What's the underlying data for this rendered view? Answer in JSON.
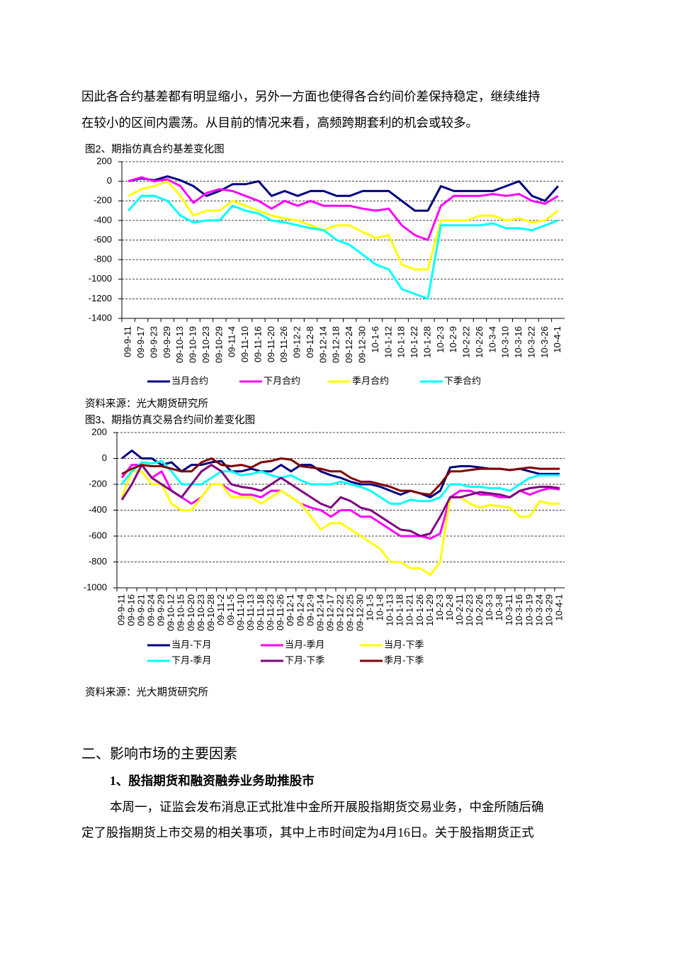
{
  "document": {
    "intro": [
      "因此各合约基差都有明显缩小，另外一方面也使得各合约间价差保持稳定，继续维持",
      "在较小的区间内震荡。从目前的情况来看，高频跨期套利的机会或较多。"
    ],
    "source_1": "资料来源：光大期货研究所",
    "source_2": "资料来源：光大期货研究所",
    "section_title": "二、影响市场的主要因素",
    "subsection_title": "1、股指期货和融资融券业务助推股市",
    "paragraph": [
      "本周一，证监会发布消息正式批准中金所开展股指期货交易业务，中金所随后确",
      "定了股指期货上市交易的相关事项，其中上市时间定为4月16日。关于股指期货正式"
    ]
  },
  "chart_data": [
    {
      "type": "line",
      "title": "图2、期指仿真合约基差变化图",
      "categories": [
        "09-9-11",
        "09-9-17",
        "09-9-23",
        "09-9-29",
        "09-10-13",
        "09-10-19",
        "09-10-23",
        "09-10-29",
        "09-11-4",
        "09-11-10",
        "09-11-16",
        "09-11-20",
        "09-11-26",
        "09-12-2",
        "09-12-8",
        "09-12-14",
        "09-12-18",
        "09-12-24",
        "09-12-30",
        "10-1-6",
        "10-1-12",
        "10-1-18",
        "10-1-22",
        "10-1-28",
        "10-2-3",
        "10-2-9",
        "10-2-22",
        "10-2-26",
        "10-3-4",
        "10-3-10",
        "10-3-16",
        "10-3-22",
        "10-3-26",
        "10-4-1"
      ],
      "series": [
        {
          "name": "当月合约",
          "color": "#000080",
          "values": [
            0,
            30,
            10,
            50,
            10,
            -50,
            -150,
            -100,
            -30,
            -30,
            0,
            -150,
            -100,
            -150,
            -100,
            -100,
            -150,
            -150,
            -100,
            -100,
            -100,
            -200,
            -300,
            -300,
            -50,
            -100,
            -100,
            -100,
            -100,
            -50,
            0,
            -150,
            -200,
            -50
          ]
        },
        {
          "name": "下月合约",
          "color": "#ff00ff",
          "values": [
            0,
            40,
            0,
            20,
            -50,
            -220,
            -120,
            -80,
            -100,
            -150,
            -200,
            -280,
            -200,
            -250,
            -200,
            -250,
            -250,
            -250,
            -280,
            -300,
            -280,
            -450,
            -550,
            -600,
            -250,
            -150,
            -150,
            -150,
            -130,
            -150,
            -130,
            -200,
            -230,
            -150
          ]
        },
        {
          "name": "季月合约",
          "color": "#ffff00",
          "values": [
            -150,
            -80,
            -50,
            0,
            -150,
            -350,
            -300,
            -300,
            -200,
            -250,
            -300,
            -350,
            -380,
            -400,
            -450,
            -500,
            -450,
            -450,
            -520,
            -580,
            -550,
            -850,
            -900,
            -900,
            -400,
            -400,
            -400,
            -350,
            -350,
            -400,
            -380,
            -420,
            -400,
            -300
          ]
        },
        {
          "name": "下季合约",
          "color": "#00ffff",
          "values": [
            -300,
            -150,
            -150,
            -200,
            -350,
            -420,
            -400,
            -400,
            -250,
            -300,
            -330,
            -400,
            -420,
            -450,
            -480,
            -500,
            -600,
            -650,
            -750,
            -850,
            -900,
            -1100,
            -1150,
            -1200,
            -450,
            -450,
            -450,
            -450,
            -430,
            -480,
            -480,
            -500,
            -450,
            -400
          ]
        }
      ],
      "ylim": [
        -1400,
        200
      ],
      "yticks": [
        200,
        0,
        -200,
        -400,
        -600,
        -800,
        -1000,
        -1200,
        -1400
      ],
      "grid": true
    },
    {
      "type": "line",
      "title": "图3、期指仿真交易合约间价差变化图",
      "categories": [
        "09-9-11",
        "09-9-16",
        "09-9-21",
        "09-9-24",
        "09-9-29",
        "09-10-12",
        "09-10-15",
        "09-10-20",
        "09-10-23",
        "09-10-28",
        "09-11-2",
        "09-11-5",
        "09-11-10",
        "09-11-13",
        "09-11-18",
        "09-11-23",
        "09-11-26",
        "09-12-1",
        "09-12-4",
        "09-12-9",
        "09-12-14",
        "09-12-17",
        "09-12-22",
        "09-12-25",
        "09-12-30",
        "10-1-5",
        "10-1-8",
        "10-1-13",
        "10-1-18",
        "10-1-21",
        "10-1-26",
        "10-1-29",
        "10-2-3",
        "10-2-8",
        "10-2-11",
        "10-2-23",
        "10-2-26",
        "10-3-3",
        "10-3-8",
        "10-3-11",
        "10-3-16",
        "10-3-19",
        "10-3-24",
        "10-3-29",
        "10-4-1"
      ],
      "series": [
        {
          "name": "当月-下月",
          "color": "#000080",
          "values": [
            0,
            60,
            0,
            0,
            -50,
            -30,
            -100,
            -50,
            -50,
            -30,
            -20,
            -100,
            -100,
            -80,
            -100,
            -100,
            -50,
            -100,
            -50,
            -50,
            -100,
            -130,
            -150,
            -180,
            -200,
            -200,
            -220,
            -250,
            -280,
            -250,
            -270,
            -300,
            -250,
            -70,
            -60,
            -60,
            -70,
            -80,
            -80,
            -90,
            -80,
            -100,
            -120,
            -120,
            -120
          ]
        },
        {
          "name": "当月-季月",
          "color": "#ff00ff",
          "values": [
            -150,
            -50,
            -50,
            -150,
            -100,
            -250,
            -300,
            -350,
            -300,
            -200,
            -200,
            -250,
            -280,
            -280,
            -300,
            -250,
            -250,
            -300,
            -350,
            -380,
            -400,
            -450,
            -400,
            -400,
            -450,
            -450,
            -500,
            -550,
            -600,
            -600,
            -600,
            -620,
            -580,
            -300,
            -250,
            -250,
            -280,
            -280,
            -300,
            -300,
            -250,
            -280,
            -250,
            -230,
            -240
          ]
        },
        {
          "name": "当月-下季",
          "color": "#ffff00",
          "values": [
            -300,
            -100,
            -100,
            -200,
            -200,
            -350,
            -400,
            -400,
            -300,
            -200,
            -200,
            -300,
            -300,
            -300,
            -350,
            -300,
            -250,
            -300,
            -350,
            -450,
            -550,
            -500,
            -500,
            -550,
            -600,
            -650,
            -700,
            -800,
            -800,
            -850,
            -850,
            -900,
            -800,
            -300,
            -300,
            -350,
            -380,
            -360,
            -370,
            -380,
            -450,
            -450,
            -330,
            -350,
            -350
          ]
        },
        {
          "name": "下月-季月",
          "color": "#00ffff",
          "values": [
            -200,
            -100,
            -30,
            -40,
            -20,
            -100,
            -200,
            -200,
            -200,
            -150,
            -100,
            -100,
            -130,
            -120,
            -100,
            -130,
            -150,
            -130,
            -170,
            -200,
            -200,
            -200,
            -180,
            -200,
            -220,
            -250,
            -300,
            -350,
            -350,
            -320,
            -330,
            -330,
            -300,
            -200,
            -200,
            -220,
            -220,
            -230,
            -230,
            -250,
            -200,
            -150,
            -130,
            -130,
            -130
          ]
        },
        {
          "name": "下月-下季",
          "color": "#800080",
          "values": [
            -320,
            -200,
            -50,
            -150,
            -200,
            -250,
            -300,
            -200,
            -100,
            -50,
            -100,
            -200,
            -220,
            -230,
            -250,
            -200,
            -150,
            -200,
            -250,
            -300,
            -350,
            -380,
            -300,
            -330,
            -380,
            -400,
            -450,
            -500,
            -550,
            -560,
            -600,
            -580,
            -450,
            -300,
            -300,
            -280,
            -260,
            -270,
            -280,
            -300,
            -250,
            -230,
            -220,
            -220,
            -230
          ]
        },
        {
          "name": "季月-下季",
          "color": "#800000",
          "values": [
            -120,
            -80,
            -50,
            -60,
            -60,
            -80,
            -100,
            -100,
            -30,
            0,
            -50,
            -60,
            -50,
            -70,
            -30,
            -20,
            0,
            -10,
            -60,
            -70,
            -80,
            -100,
            -100,
            -150,
            -180,
            -180,
            -200,
            -220,
            -250,
            -250,
            -270,
            -280,
            -200,
            -100,
            -100,
            -90,
            -80,
            -80,
            -80,
            -90,
            -80,
            -70,
            -80,
            -80,
            -80
          ]
        }
      ],
      "ylim": [
        -1000,
        200
      ],
      "yticks": [
        200,
        0,
        -200,
        -400,
        -600,
        -800,
        -1000
      ],
      "grid": true
    }
  ]
}
